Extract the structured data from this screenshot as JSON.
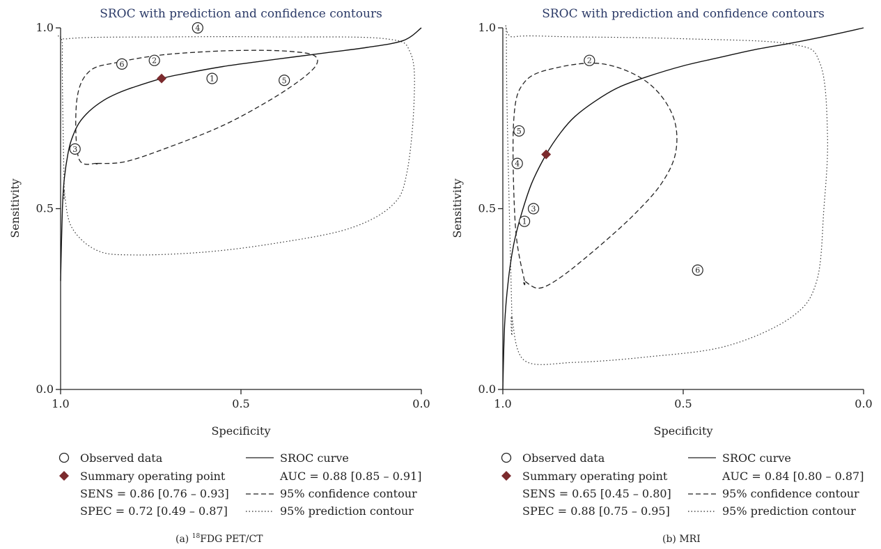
{
  "chart_data": [
    {
      "type": "scatter",
      "panel_title": "SROC with prediction and confidence contours",
      "caption_prefix": "(a) ",
      "caption_sup": "18",
      "caption_main": "FDG PET/CT",
      "xlabel": "Specificity",
      "ylabel": "Sensitivity",
      "xlim": [
        1.0,
        0.0
      ],
      "ylim": [
        0.0,
        1.0
      ],
      "xticks": [
        "1.0",
        "0.5",
        "0.0"
      ],
      "yticks": [
        "0.0",
        "0.5",
        "1.0"
      ],
      "observed": [
        {
          "label": "1",
          "spec": 0.58,
          "sens": 0.86
        },
        {
          "label": "2",
          "spec": 0.74,
          "sens": 0.91
        },
        {
          "label": "3",
          "spec": 0.96,
          "sens": 0.665
        },
        {
          "label": "4",
          "spec": 0.62,
          "sens": 1.0
        },
        {
          "label": "5",
          "spec": 0.38,
          "sens": 0.855
        },
        {
          "label": "6",
          "spec": 0.83,
          "sens": 0.9
        }
      ],
      "summary_point": {
        "spec": 0.72,
        "sens": 0.86
      },
      "sroc_curve": {
        "spec": [
          1.0,
          0.995,
          0.99,
          0.98,
          0.97,
          0.95,
          0.92,
          0.88,
          0.84,
          0.8,
          0.72,
          0.65,
          0.55,
          0.45,
          0.35,
          0.25,
          0.15,
          0.05,
          0.0
        ],
        "sens": [
          0.3,
          0.5,
          0.58,
          0.65,
          0.69,
          0.735,
          0.77,
          0.8,
          0.82,
          0.835,
          0.86,
          0.875,
          0.893,
          0.907,
          0.92,
          0.933,
          0.946,
          0.965,
          1.0
        ]
      },
      "confidence_contour": {
        "spec": [
          0.9,
          0.95,
          0.955,
          0.92,
          0.84,
          0.72,
          0.58,
          0.46,
          0.365,
          0.3,
          0.29,
          0.33,
          0.42,
          0.55,
          0.7,
          0.82,
          0.9
        ],
        "sens": [
          0.625,
          0.64,
          0.8,
          0.88,
          0.905,
          0.925,
          0.935,
          0.938,
          0.935,
          0.925,
          0.9,
          0.86,
          0.8,
          0.73,
          0.67,
          0.63,
          0.625
        ]
      },
      "prediction_contour": {
        "spec": [
          0.99,
          0.995,
          0.98,
          0.7,
          0.4,
          0.1,
          0.03,
          0.02,
          0.04,
          0.08,
          0.2,
          0.4,
          0.6,
          0.8,
          0.9,
          0.97,
          0.99
        ],
        "sens": [
          0.55,
          0.94,
          0.97,
          0.975,
          0.975,
          0.97,
          0.93,
          0.8,
          0.6,
          0.51,
          0.445,
          0.405,
          0.38,
          0.372,
          0.385,
          0.45,
          0.55
        ]
      },
      "legend": {
        "observed": "Observed data",
        "summary": "Summary operating point",
        "sens": "SENS = 0.86 [0.76 – 0.93]",
        "spec": "SPEC = 0.72 [0.49 – 0.87]",
        "sroc": "SROC curve",
        "auc": "AUC = 0.88 [0.85 – 0.91]",
        "confidence": "95% confidence contour",
        "prediction": "95% prediction contour"
      },
      "colors": {
        "summary": "#7b2a2d",
        "axis": "#222222",
        "title": "#2b3a67"
      }
    },
    {
      "type": "scatter",
      "panel_title": "SROC with prediction and confidence contours",
      "caption_prefix": "(b) ",
      "caption_sup": "",
      "caption_main": "MRI",
      "xlabel": "Specificity",
      "ylabel": "Sensitivity",
      "xlim": [
        1.0,
        0.0
      ],
      "ylim": [
        0.0,
        1.0
      ],
      "xticks": [
        "1.0",
        "0.5",
        "0.0"
      ],
      "yticks": [
        "0.0",
        "0.5",
        "1.0"
      ],
      "observed": [
        {
          "label": "1",
          "spec": 0.94,
          "sens": 0.465
        },
        {
          "label": "2",
          "spec": 0.76,
          "sens": 0.91
        },
        {
          "label": "3",
          "spec": 0.915,
          "sens": 0.5
        },
        {
          "label": "4",
          "spec": 0.96,
          "sens": 0.625
        },
        {
          "label": "5",
          "spec": 0.955,
          "sens": 0.715
        },
        {
          "label": "6",
          "spec": 0.46,
          "sens": 0.33
        }
      ],
      "summary_point": {
        "spec": 0.88,
        "sens": 0.65
      },
      "sroc_curve": {
        "spec": [
          1.0,
          0.995,
          0.985,
          0.97,
          0.95,
          0.92,
          0.88,
          0.84,
          0.8,
          0.74,
          0.68,
          0.6,
          0.5,
          0.4,
          0.3,
          0.2,
          0.1,
          0.0
        ],
        "sens": [
          0.0,
          0.18,
          0.3,
          0.4,
          0.48,
          0.57,
          0.65,
          0.71,
          0.755,
          0.8,
          0.835,
          0.865,
          0.895,
          0.918,
          0.94,
          0.958,
          0.978,
          1.0
        ]
      },
      "confidence_contour": {
        "spec": [
          0.94,
          0.965,
          0.97,
          0.94,
          0.85,
          0.72,
          0.6,
          0.53,
          0.52,
          0.56,
          0.64,
          0.74,
          0.84,
          0.9,
          0.94
        ],
        "sens": [
          0.3,
          0.45,
          0.74,
          0.85,
          0.89,
          0.9,
          0.85,
          0.76,
          0.66,
          0.57,
          0.48,
          0.39,
          0.31,
          0.28,
          0.3
        ]
      },
      "prediction_contour": {
        "spec": [
          0.975,
          0.99,
          0.97,
          0.8,
          0.5,
          0.2,
          0.12,
          0.1,
          0.11,
          0.13,
          0.2,
          0.38,
          0.6,
          0.8,
          0.94,
          0.975
        ],
        "sens": [
          0.2,
          0.94,
          0.975,
          0.975,
          0.97,
          0.955,
          0.9,
          0.7,
          0.5,
          0.3,
          0.2,
          0.12,
          0.09,
          0.075,
          0.08,
          0.2
        ]
      },
      "legend": {
        "observed": "Observed data",
        "summary": "Summary operating point",
        "sens": "SENS = 0.65 [0.45 – 0.80]",
        "spec": "SPEC = 0.88 [0.75 – 0.95]",
        "sroc": "SROC curve",
        "auc": "AUC = 0.84 [0.80 – 0.87]",
        "confidence": "95% confidence contour",
        "prediction": "95% prediction contour"
      },
      "colors": {
        "summary": "#7b2a2d",
        "axis": "#222222",
        "title": "#2b3a67"
      }
    }
  ]
}
